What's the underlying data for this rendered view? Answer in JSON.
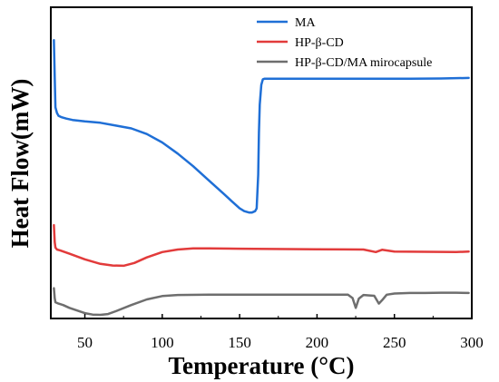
{
  "chart_data": {
    "type": "line",
    "title": "",
    "xlabel": "Temperature (°C)",
    "ylabel": "Heat Flow(mW)",
    "xlim": [
      28,
      300
    ],
    "ylim": [
      0,
      100
    ],
    "x_ticks": [
      50,
      100,
      150,
      200,
      250,
      300
    ],
    "x_tick_labels": [
      "50",
      "100",
      "150",
      "200",
      "250",
      "300"
    ],
    "y_ticks_shown": false,
    "grid": false,
    "legend_position": "top-right",
    "series": [
      {
        "name": "MA",
        "color": "#1f6fd6",
        "x": [
          30,
          30.5,
          31,
          32,
          33,
          35,
          38,
          42,
          50,
          60,
          70,
          80,
          90,
          100,
          110,
          120,
          130,
          140,
          145,
          150,
          153,
          156,
          158,
          160,
          161,
          162,
          162.5,
          163,
          164,
          165,
          166,
          170,
          180,
          200,
          220,
          240,
          260,
          280,
          298
        ],
        "y": [
          98,
          85,
          74,
          72,
          71,
          70.5,
          70,
          69.5,
          69,
          68.5,
          67.5,
          66.5,
          64.5,
          61.5,
          57.5,
          53,
          48,
          43,
          40.5,
          38,
          37,
          36.5,
          36.5,
          37,
          38,
          50,
          65,
          75,
          82,
          84,
          84.2,
          84.2,
          84.2,
          84.2,
          84.2,
          84.2,
          84.2,
          84.3,
          84.5
        ]
      },
      {
        "name": "HP-β-CD",
        "color": "#e23b3b",
        "x": [
          30,
          30.5,
          31,
          32,
          34,
          40,
          50,
          60,
          68,
          75,
          82,
          90,
          100,
          110,
          120,
          130,
          150,
          200,
          230,
          238,
          242,
          250,
          270,
          290,
          298
        ],
        "y": [
          32,
          26,
          24,
          23.3,
          23,
          21.8,
          19.8,
          18.2,
          17.6,
          17.5,
          18.5,
          20.5,
          22.4,
          23.3,
          23.7,
          23.7,
          23.6,
          23.4,
          23.3,
          22.4,
          23.2,
          22.6,
          22.5,
          22.4,
          22.6
        ]
      },
      {
        "name": "HP-β-CD/MA mirocapsule",
        "color": "#6e6e6e",
        "x": [
          30,
          30.5,
          31,
          33,
          36,
          40,
          50,
          55,
          60,
          65,
          70,
          80,
          90,
          100,
          110,
          130,
          150,
          200,
          220,
          223,
          225,
          227,
          230,
          237,
          240,
          242,
          245,
          250,
          260,
          270,
          280,
          290,
          298
        ],
        "y": [
          9.5,
          6,
          4.5,
          4,
          3.5,
          2.5,
          0.6,
          0.1,
          0,
          0.3,
          1.3,
          3.5,
          5.5,
          6.7,
          7.1,
          7.2,
          7.2,
          7.2,
          7.2,
          6,
          2.5,
          5.8,
          7.1,
          6.8,
          4,
          5.2,
          7.2,
          7.6,
          7.8,
          7.8,
          7.9,
          7.9,
          7.8
        ]
      }
    ]
  }
}
